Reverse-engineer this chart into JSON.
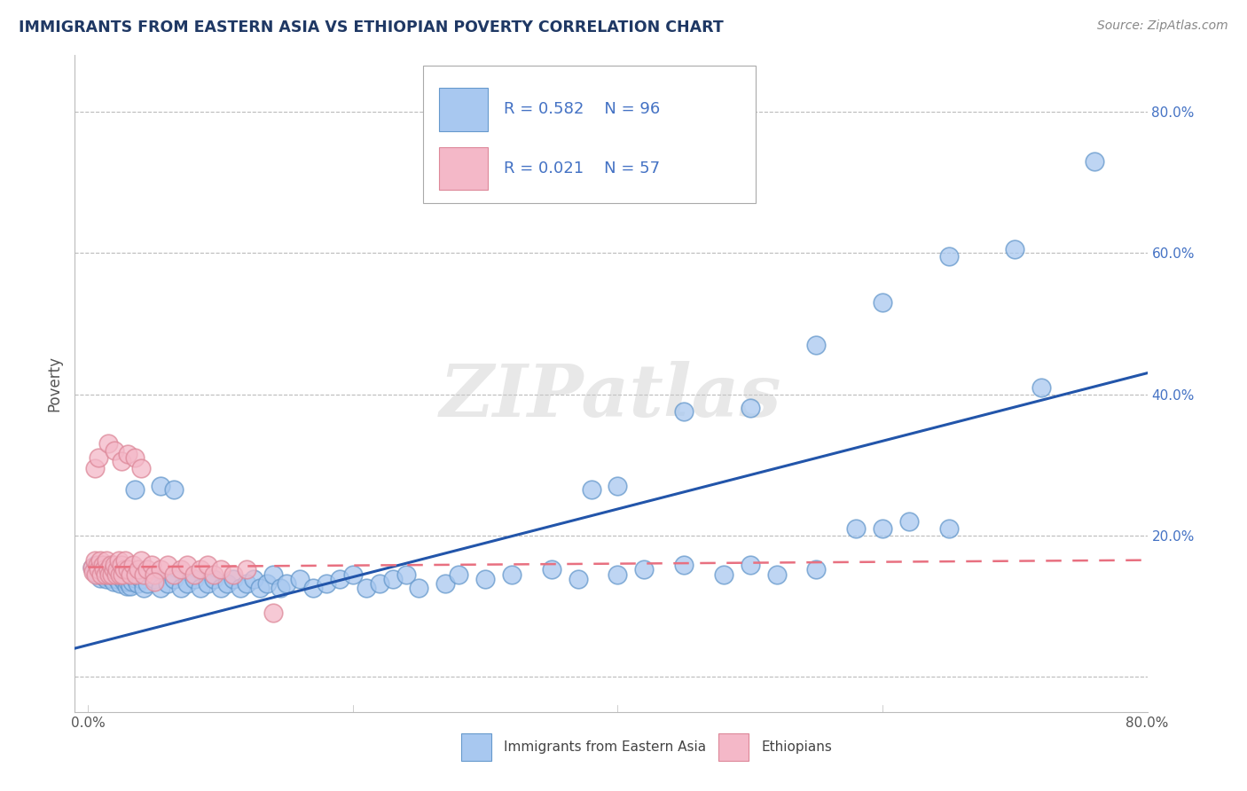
{
  "title": "IMMIGRANTS FROM EASTERN ASIA VS ETHIOPIAN POVERTY CORRELATION CHART",
  "source": "Source: ZipAtlas.com",
  "ylabel": "Poverty",
  "legend_blue_R": "R = 0.582",
  "legend_blue_N": "N = 96",
  "legend_pink_R": "R = 0.021",
  "legend_pink_N": "N = 57",
  "legend_label_blue": "Immigrants from Eastern Asia",
  "legend_label_pink": "Ethiopians",
  "watermark": "ZIPatlas",
  "blue_fill": "#A8C8F0",
  "blue_edge": "#6699CC",
  "pink_fill": "#F4B8C8",
  "pink_edge": "#DD8899",
  "blue_line_color": "#2255AA",
  "pink_line_color": "#E87080",
  "grid_color": "#BBBBBB",
  "title_color": "#1F3864",
  "legend_text_color": "#4472C4",
  "blue_scatter": [
    [
      0.003,
      0.155
    ],
    [
      0.005,
      0.148
    ],
    [
      0.006,
      0.158
    ],
    [
      0.007,
      0.145
    ],
    [
      0.008,
      0.152
    ],
    [
      0.009,
      0.14
    ],
    [
      0.01,
      0.155
    ],
    [
      0.011,
      0.148
    ],
    [
      0.012,
      0.142
    ],
    [
      0.013,
      0.15
    ],
    [
      0.014,
      0.138
    ],
    [
      0.015,
      0.145
    ],
    [
      0.016,
      0.152
    ],
    [
      0.017,
      0.14
    ],
    [
      0.018,
      0.148
    ],
    [
      0.019,
      0.135
    ],
    [
      0.02,
      0.142
    ],
    [
      0.021,
      0.15
    ],
    [
      0.022,
      0.138
    ],
    [
      0.023,
      0.145
    ],
    [
      0.024,
      0.132
    ],
    [
      0.025,
      0.14
    ],
    [
      0.026,
      0.148
    ],
    [
      0.027,
      0.135
    ],
    [
      0.028,
      0.142
    ],
    [
      0.029,
      0.128
    ],
    [
      0.03,
      0.135
    ],
    [
      0.031,
      0.142
    ],
    [
      0.032,
      0.128
    ],
    [
      0.033,
      0.135
    ],
    [
      0.035,
      0.14
    ],
    [
      0.037,
      0.132
    ],
    [
      0.04,
      0.138
    ],
    [
      0.042,
      0.125
    ],
    [
      0.045,
      0.132
    ],
    [
      0.05,
      0.138
    ],
    [
      0.055,
      0.125
    ],
    [
      0.06,
      0.132
    ],
    [
      0.065,
      0.138
    ],
    [
      0.07,
      0.125
    ],
    [
      0.075,
      0.132
    ],
    [
      0.08,
      0.138
    ],
    [
      0.085,
      0.125
    ],
    [
      0.09,
      0.132
    ],
    [
      0.095,
      0.138
    ],
    [
      0.1,
      0.125
    ],
    [
      0.105,
      0.132
    ],
    [
      0.11,
      0.138
    ],
    [
      0.115,
      0.125
    ],
    [
      0.12,
      0.132
    ],
    [
      0.125,
      0.138
    ],
    [
      0.13,
      0.125
    ],
    [
      0.135,
      0.132
    ],
    [
      0.14,
      0.145
    ],
    [
      0.145,
      0.125
    ],
    [
      0.15,
      0.132
    ],
    [
      0.16,
      0.138
    ],
    [
      0.17,
      0.125
    ],
    [
      0.18,
      0.132
    ],
    [
      0.19,
      0.138
    ],
    [
      0.2,
      0.145
    ],
    [
      0.21,
      0.125
    ],
    [
      0.22,
      0.132
    ],
    [
      0.23,
      0.138
    ],
    [
      0.24,
      0.145
    ],
    [
      0.25,
      0.125
    ],
    [
      0.27,
      0.132
    ],
    [
      0.28,
      0.145
    ],
    [
      0.3,
      0.138
    ],
    [
      0.32,
      0.145
    ],
    [
      0.35,
      0.152
    ],
    [
      0.37,
      0.138
    ],
    [
      0.4,
      0.145
    ],
    [
      0.42,
      0.152
    ],
    [
      0.45,
      0.158
    ],
    [
      0.48,
      0.145
    ],
    [
      0.5,
      0.158
    ],
    [
      0.52,
      0.145
    ],
    [
      0.55,
      0.152
    ],
    [
      0.58,
      0.21
    ],
    [
      0.6,
      0.21
    ],
    [
      0.62,
      0.22
    ],
    [
      0.65,
      0.21
    ],
    [
      0.035,
      0.265
    ],
    [
      0.055,
      0.27
    ],
    [
      0.065,
      0.265
    ],
    [
      0.38,
      0.265
    ],
    [
      0.4,
      0.27
    ],
    [
      0.45,
      0.375
    ],
    [
      0.5,
      0.38
    ],
    [
      0.55,
      0.47
    ],
    [
      0.6,
      0.53
    ],
    [
      0.65,
      0.595
    ],
    [
      0.7,
      0.605
    ],
    [
      0.72,
      0.41
    ],
    [
      0.76,
      0.73
    ]
  ],
  "pink_scatter": [
    [
      0.003,
      0.155
    ],
    [
      0.004,
      0.148
    ],
    [
      0.005,
      0.165
    ],
    [
      0.006,
      0.145
    ],
    [
      0.007,
      0.158
    ],
    [
      0.008,
      0.152
    ],
    [
      0.009,
      0.165
    ],
    [
      0.01,
      0.145
    ],
    [
      0.011,
      0.158
    ],
    [
      0.012,
      0.152
    ],
    [
      0.013,
      0.145
    ],
    [
      0.014,
      0.165
    ],
    [
      0.015,
      0.152
    ],
    [
      0.016,
      0.145
    ],
    [
      0.017,
      0.158
    ],
    [
      0.018,
      0.145
    ],
    [
      0.019,
      0.152
    ],
    [
      0.02,
      0.158
    ],
    [
      0.021,
      0.145
    ],
    [
      0.022,
      0.152
    ],
    [
      0.023,
      0.165
    ],
    [
      0.024,
      0.145
    ],
    [
      0.025,
      0.158
    ],
    [
      0.026,
      0.145
    ],
    [
      0.027,
      0.152
    ],
    [
      0.028,
      0.165
    ],
    [
      0.03,
      0.152
    ],
    [
      0.032,
      0.145
    ],
    [
      0.034,
      0.158
    ],
    [
      0.036,
      0.145
    ],
    [
      0.038,
      0.152
    ],
    [
      0.04,
      0.165
    ],
    [
      0.042,
      0.145
    ],
    [
      0.045,
      0.152
    ],
    [
      0.048,
      0.158
    ],
    [
      0.05,
      0.145
    ],
    [
      0.055,
      0.152
    ],
    [
      0.06,
      0.158
    ],
    [
      0.065,
      0.145
    ],
    [
      0.07,
      0.152
    ],
    [
      0.075,
      0.158
    ],
    [
      0.08,
      0.145
    ],
    [
      0.085,
      0.152
    ],
    [
      0.09,
      0.158
    ],
    [
      0.095,
      0.145
    ],
    [
      0.1,
      0.152
    ],
    [
      0.11,
      0.145
    ],
    [
      0.12,
      0.152
    ],
    [
      0.005,
      0.295
    ],
    [
      0.008,
      0.31
    ],
    [
      0.015,
      0.33
    ],
    [
      0.02,
      0.32
    ],
    [
      0.025,
      0.305
    ],
    [
      0.03,
      0.315
    ],
    [
      0.035,
      0.31
    ],
    [
      0.04,
      0.295
    ],
    [
      0.05,
      0.135
    ],
    [
      0.14,
      0.09
    ]
  ],
  "xlim": [
    -0.01,
    0.8
  ],
  "ylim": [
    -0.05,
    0.88
  ],
  "blue_line_x": [
    -0.01,
    0.8
  ],
  "blue_line_y": [
    0.04,
    0.43
  ],
  "pink_line_x": [
    0.0,
    0.8
  ],
  "pink_line_y": [
    0.155,
    0.165
  ],
  "yticks": [
    0.0,
    0.2,
    0.4,
    0.6,
    0.8
  ],
  "ytick_labels": [
    "",
    "20.0%",
    "40.0%",
    "60.0%",
    "80.0%"
  ],
  "xticks": [
    0.0,
    0.1,
    0.2,
    0.3,
    0.4,
    0.5,
    0.6,
    0.7,
    0.8
  ],
  "xtick_labels": [
    "0.0%",
    "",
    "",
    "",
    "",
    "",
    "",
    "",
    "80.0%"
  ]
}
